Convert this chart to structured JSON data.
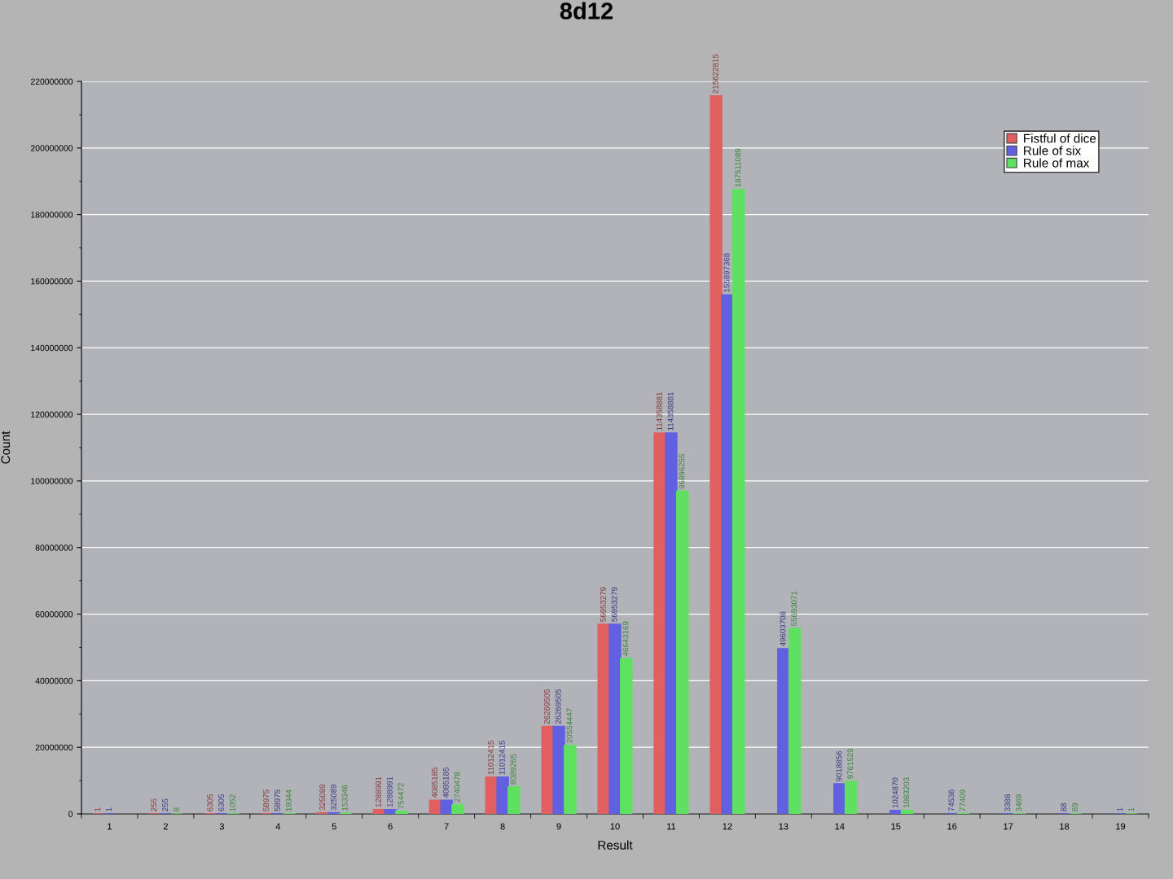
{
  "chart_data": {
    "type": "bar",
    "title": "8d12",
    "xlabel": "Result",
    "ylabel": "Count",
    "categories": [
      "1",
      "2",
      "3",
      "4",
      "5",
      "6",
      "7",
      "8",
      "9",
      "10",
      "11",
      "12",
      "13",
      "14",
      "15",
      "16",
      "17",
      "18",
      "19"
    ],
    "series": [
      {
        "name": "Fistful of dice",
        "color": "#e06060",
        "values": [
          1,
          255,
          6305,
          58975,
          325089,
          1288991,
          4085185,
          11012415,
          26269505,
          56953279,
          114358881,
          215622815,
          null,
          null,
          null,
          null,
          null,
          null,
          null
        ]
      },
      {
        "name": "Rule of six",
        "color": "#6060e0",
        "values": [
          1,
          255,
          6305,
          58975,
          325089,
          1288991,
          4085185,
          11012415,
          26269505,
          56953279,
          114358881,
          155897368,
          49603708,
          9018856,
          1024870,
          74536,
          3388,
          88,
          1
        ]
      },
      {
        "name": "Rule of max",
        "color": "#60e060",
        "values": [
          null,
          8,
          1052,
          19344,
          153346,
          754472,
          2740478,
          8089265,
          20554447,
          46643169,
          96896255,
          187511089,
          55693071,
          9761529,
          1083203,
          77409,
          3469,
          89,
          1
        ]
      }
    ],
    "ylim": [
      0,
      220000000
    ],
    "yticks": [
      0,
      {
        "value": 10000000,
        "label": null
      },
      20000000,
      {
        "value": 30000000,
        "label": null
      },
      40000000,
      {
        "value": 50000000,
        "label": null
      },
      60000000,
      {
        "value": 70000000,
        "label": null
      },
      80000000,
      {
        "value": 90000000,
        "label": null
      },
      100000000,
      {
        "value": 110000000,
        "label": null
      },
      120000000,
      {
        "value": 130000000,
        "label": null
      },
      140000000,
      {
        "value": 150000000,
        "label": null
      },
      160000000,
      {
        "value": 170000000,
        "label": null
      },
      180000000,
      {
        "value": 190000000,
        "label": null
      },
      200000000,
      {
        "value": 210000000,
        "label": null
      },
      220000000
    ],
    "grid": "y",
    "legend": "top right",
    "data_labels": true
  }
}
